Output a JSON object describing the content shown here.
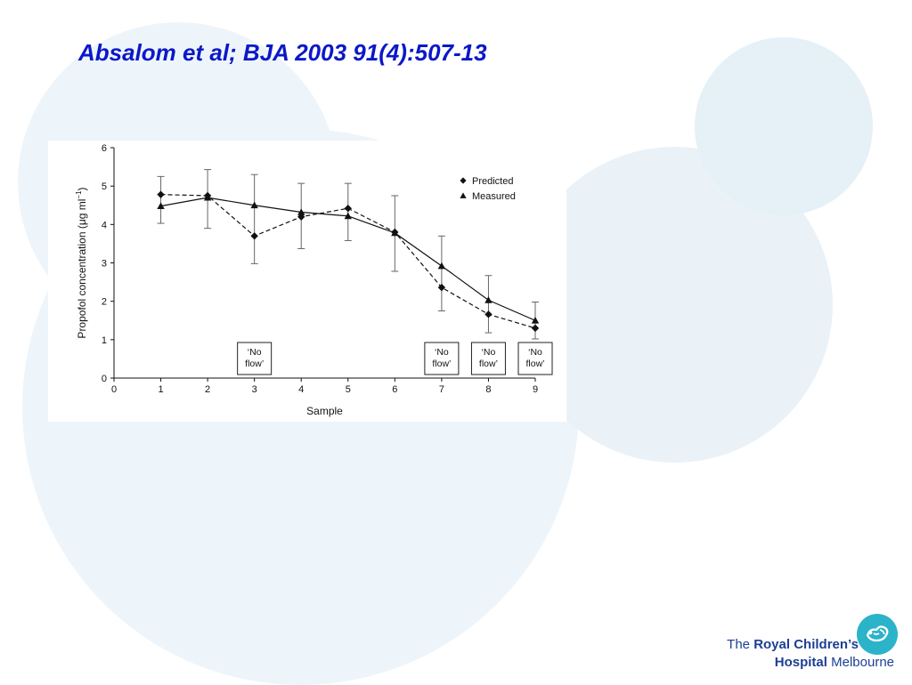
{
  "slide": {
    "title": "Absalom et al;  BJA  2003 91(4):507-13"
  },
  "logo": {
    "line1_light": "The ",
    "line1_bold": "Royal Children’s",
    "line2_bold": "Hospital",
    "line2_light": " Melbourne",
    "mark_icon": "swaddled-baby-icon",
    "mark_color": "#2bb3c9",
    "text_color": "#1c3f94"
  },
  "chart_data": {
    "type": "line",
    "xlabel": "Sample",
    "ylabel": "Propofol concentration (μg ml",
    "ylabel_superscript": "−1",
    "ylabel_close": ")",
    "xlim": [
      0,
      9
    ],
    "ylim": [
      0,
      6
    ],
    "x_ticks": [
      0,
      1,
      2,
      3,
      4,
      5,
      6,
      7,
      8,
      9
    ],
    "y_ticks": [
      0,
      1,
      2,
      3,
      4,
      5,
      6
    ],
    "grid": false,
    "legend_position": "top-right",
    "series": [
      {
        "name": "Predicted",
        "marker": "diamond",
        "line_style": "dashed",
        "x": [
          1,
          2,
          3,
          4,
          5,
          6,
          7,
          8,
          9
        ],
        "y": [
          4.78,
          4.75,
          3.7,
          4.2,
          4.42,
          3.8,
          2.36,
          1.66,
          1.3
        ]
      },
      {
        "name": "Measured",
        "marker": "triangle",
        "line_style": "solid",
        "x": [
          1,
          2,
          3,
          4,
          5,
          6,
          7,
          8,
          9
        ],
        "y": [
          4.48,
          4.7,
          4.5,
          4.32,
          4.22,
          3.78,
          2.92,
          2.03,
          1.5
        ],
        "error_low": [
          4.03,
          3.9,
          2.98,
          3.37,
          3.58,
          2.78,
          1.75,
          1.18,
          1.02
        ],
        "error_high": [
          5.25,
          5.43,
          5.3,
          5.07,
          5.07,
          4.75,
          3.7,
          2.67,
          1.98
        ]
      }
    ],
    "annotations": [
      {
        "x": 3,
        "line1": "‘No",
        "line2": "flow’"
      },
      {
        "x": 7,
        "line1": "‘No",
        "line2": "flow’"
      },
      {
        "x": 8,
        "line1": "‘No",
        "line2": "flow’"
      },
      {
        "x": 9,
        "line1": "‘No",
        "line2": "flow’"
      }
    ]
  }
}
